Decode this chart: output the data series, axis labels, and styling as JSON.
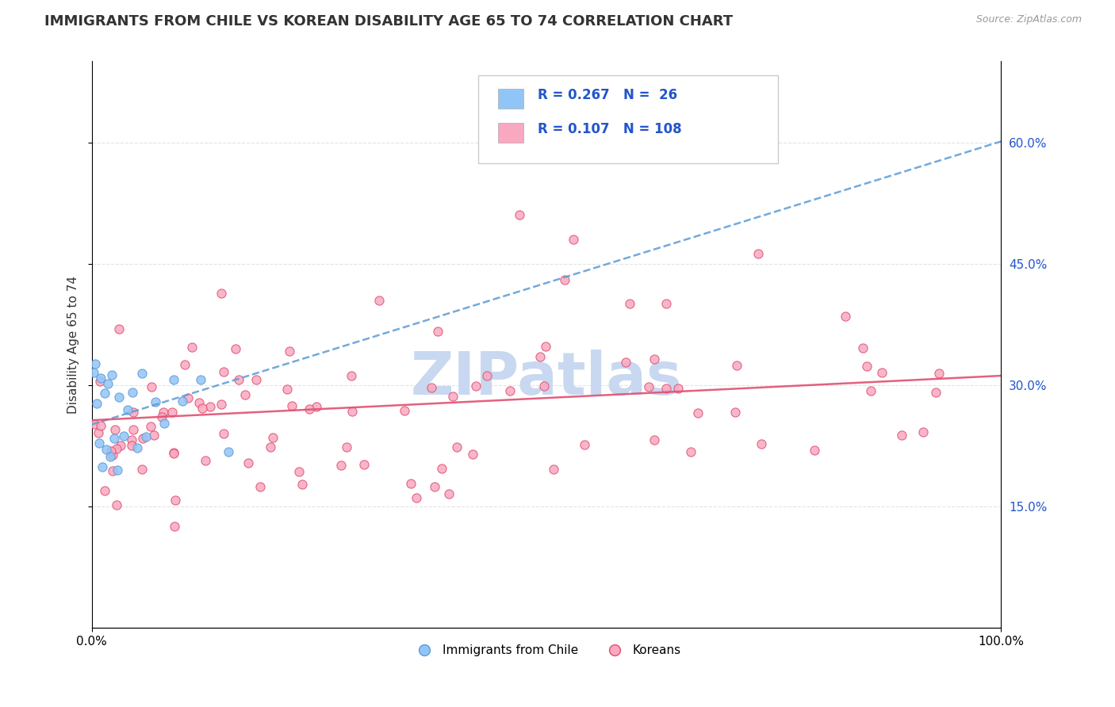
{
  "title": "IMMIGRANTS FROM CHILE VS KOREAN DISABILITY AGE 65 TO 74 CORRELATION CHART",
  "source": "Source: ZipAtlas.com",
  "ylabel": "Disability Age 65 to 74",
  "xlim": [
    0.0,
    1.0
  ],
  "ylim": [
    0.0,
    0.7
  ],
  "ytick_positions": [
    0.15,
    0.3,
    0.45,
    0.6
  ],
  "ytick_labels": [
    "15.0%",
    "30.0%",
    "45.0%",
    "60.0%"
  ],
  "color_chile": "#92C5F7",
  "color_korean": "#F9A8C0",
  "edge_color_chile": "#5B9BD5",
  "edge_color_korean": "#E05070",
  "trendline_chile_color": "#5B9BD5",
  "trendline_korean_color": "#E05070",
  "watermark_color": "#C8D8F0",
  "background_color": "#FFFFFF",
  "grid_color": "#E0E0E0",
  "legend_text_color": "#2255CC"
}
